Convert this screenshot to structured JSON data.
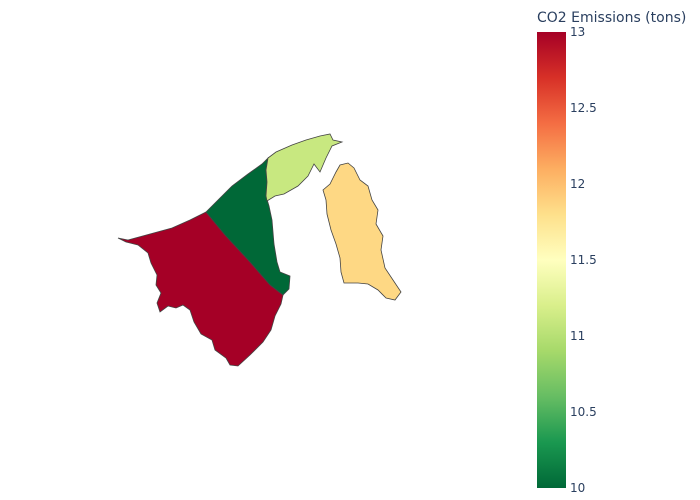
{
  "map": {
    "regions": [
      {
        "id": "belait",
        "value": 13.0
      },
      {
        "id": "tutong",
        "value": 10.0
      },
      {
        "id": "brunei-muara",
        "value": 11.1
      },
      {
        "id": "temburong",
        "value": 11.85
      }
    ],
    "colorscale": [
      [
        0.0,
        "#006837"
      ],
      [
        0.1,
        "#1a9850"
      ],
      [
        0.2,
        "#66bd63"
      ],
      [
        0.3,
        "#a6d96a"
      ],
      [
        0.4,
        "#d9ef8b"
      ],
      [
        0.5,
        "#ffffbf"
      ],
      [
        0.6,
        "#fee08b"
      ],
      [
        0.7,
        "#fdae61"
      ],
      [
        0.8,
        "#f46d43"
      ],
      [
        0.9,
        "#d73027"
      ],
      [
        1.0,
        "#a50026"
      ]
    ],
    "cmin": 10,
    "cmax": 13,
    "border_color": "#444444"
  },
  "colorbar": {
    "title": "CO2 Emissions (tons)",
    "ticks": [
      {
        "value": 13,
        "label": "13"
      },
      {
        "value": 12.5,
        "label": "12.5"
      },
      {
        "value": 12,
        "label": "12"
      },
      {
        "value": 11.5,
        "label": "11.5"
      },
      {
        "value": 11,
        "label": "11"
      },
      {
        "value": 10.5,
        "label": "10.5"
      },
      {
        "value": 10,
        "label": "10"
      }
    ]
  }
}
